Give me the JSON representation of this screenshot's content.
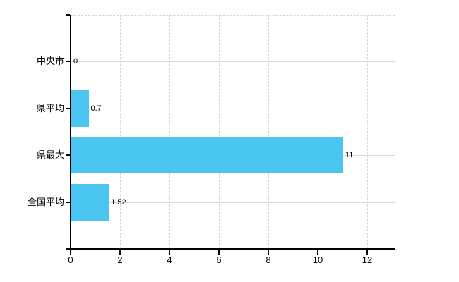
{
  "chart_data": {
    "type": "bar",
    "orientation": "horizontal",
    "title": "",
    "xlabel": "",
    "ylabel": "",
    "categories": [
      "中央市",
      "県平均",
      "県最大",
      "全国平均"
    ],
    "values": [
      0,
      0.7,
      11,
      1.52
    ],
    "value_labels": [
      "0",
      "0.7",
      "11",
      "1.52"
    ],
    "x_tick_labels": [
      "0",
      "2",
      "4",
      "6",
      "8",
      "10",
      "12"
    ],
    "x_tick_values": [
      0,
      2,
      4,
      6,
      8,
      10,
      12
    ],
    "xlim": [
      0,
      13.14
    ],
    "grid": true,
    "legend": null,
    "bar_color": "#4ac5f0",
    "axis_color": "#000000",
    "grid_color": "#d6d6d6",
    "label_color": "#000000",
    "background_color": "#ffffff"
  }
}
